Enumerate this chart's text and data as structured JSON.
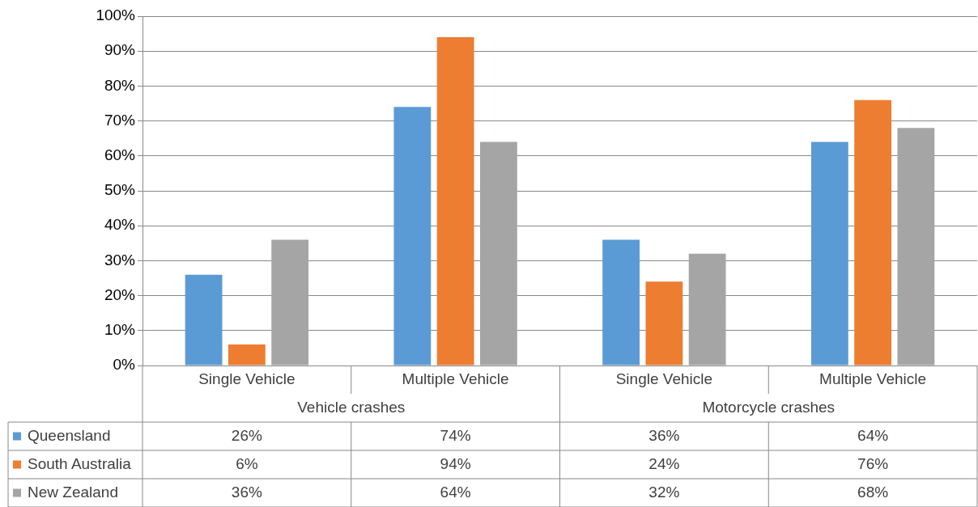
{
  "chart_data": {
    "type": "bar",
    "categories": [
      "Single Vehicle",
      "Multiple Vehicle",
      "Single Vehicle",
      "Multiple Vehicle"
    ],
    "annotations": [
      "Vehicle crashes",
      "Motorcycle crashes"
    ],
    "series": [
      {
        "name": "Queensland",
        "color": "#5b9bd5",
        "values": [
          26,
          74,
          36,
          64
        ],
        "value_labels": [
          "26%",
          "74%",
          "36%",
          "64%"
        ]
      },
      {
        "name": "South Australia",
        "color": "#ed7d31",
        "values": [
          6,
          94,
          24,
          76
        ],
        "value_labels": [
          "6%",
          "94%",
          "24%",
          "76%"
        ]
      },
      {
        "name": "New Zealand",
        "color": "#a5a5a5",
        "values": [
          36,
          64,
          32,
          68
        ],
        "value_labels": [
          "36%",
          "64%",
          "32%",
          "68%"
        ]
      }
    ],
    "ylim": [
      0,
      100
    ],
    "yticks": [
      {
        "value": 0,
        "label": "0%"
      },
      {
        "value": 10,
        "label": "10%"
      },
      {
        "value": 20,
        "label": "20%"
      },
      {
        "value": 30,
        "label": "30%"
      },
      {
        "value": 40,
        "label": "40%"
      },
      {
        "value": 50,
        "label": "50%"
      },
      {
        "value": 60,
        "label": "60%"
      },
      {
        "value": 70,
        "label": "70%"
      },
      {
        "value": 80,
        "label": "80%"
      },
      {
        "value": 90,
        "label": "90%"
      },
      {
        "value": 100,
        "label": "100%"
      }
    ],
    "grid": "y",
    "legend": "bottom"
  }
}
